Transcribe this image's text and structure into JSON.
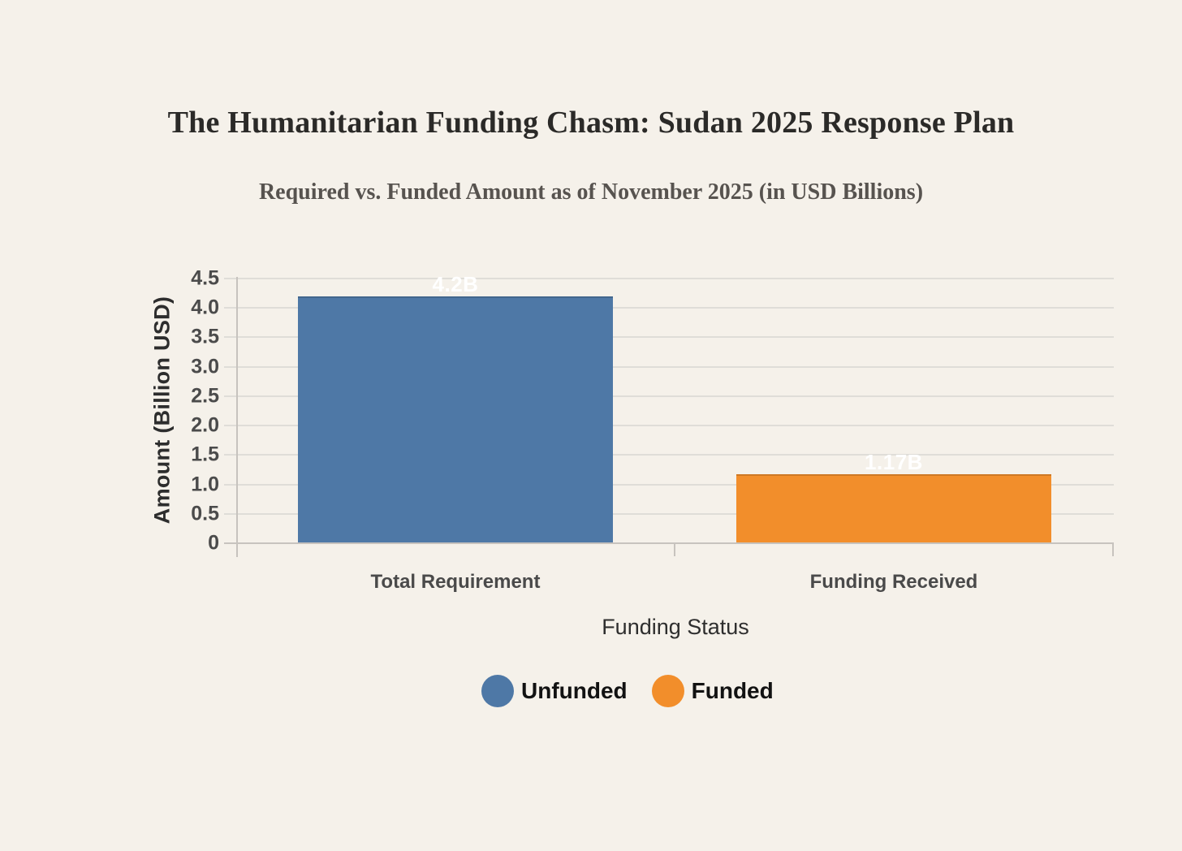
{
  "title": "The Humanitarian Funding Chasm: Sudan 2025 Response Plan",
  "subtitle": "Required vs. Funded Amount as of November 2025 (in USD Billions)",
  "chart_data": {
    "type": "bar",
    "categories": [
      "Total Requirement",
      "Funding Received"
    ],
    "values": [
      4.2,
      1.17
    ],
    "series": [
      {
        "name": "Unfunded",
        "category": "Total Requirement",
        "value": 4.2,
        "label": "4.2B",
        "color": "#4e78a6"
      },
      {
        "name": "Funded",
        "category": "Funding Received",
        "value": 1.17,
        "label": "1.17B",
        "color": "#f28e2b"
      }
    ],
    "title": "The Humanitarian Funding Chasm: Sudan 2025 Response Plan",
    "subtitle": "Required vs. Funded Amount as of November 2025 (in USD Billions)",
    "xlabel": "Funding Status",
    "ylabel": "Amount (Billion USD)",
    "ylim": [
      0,
      4.5
    ],
    "ytick_labels": [
      "0",
      "0.5",
      "1.0",
      "1.5",
      "2.0",
      "2.5",
      "3.0",
      "3.5",
      "4.0",
      "4.5"
    ],
    "ytick_values": [
      0,
      0.5,
      1.0,
      1.5,
      2.0,
      2.5,
      3.0,
      3.5,
      4.0,
      4.5
    ],
    "grid": true,
    "legend_position": "bottom",
    "legend": [
      {
        "label": "Unfunded",
        "color": "#4e78a6"
      },
      {
        "label": "Funded",
        "color": "#f28e2b"
      }
    ]
  },
  "colors": {
    "background": "#f5f1ea",
    "gridline": "#dfddd8",
    "axis_line": "#c7c3be",
    "title_text": "#2b2a28",
    "subtitle_text": "#57534f",
    "tick_text": "#4b4b4b",
    "value_label_text": "#ffffff"
  }
}
